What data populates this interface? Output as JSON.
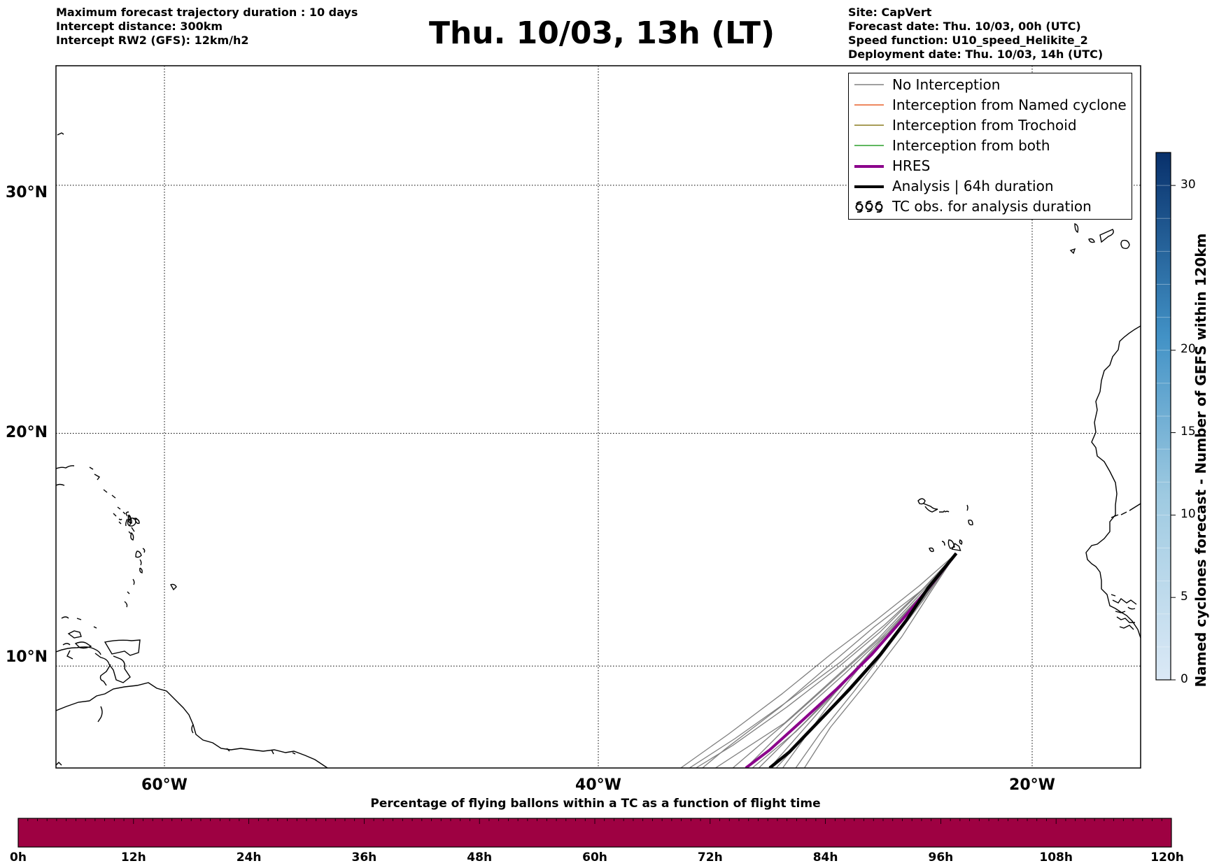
{
  "header": {
    "left_lines": [
      "Maximum forecast trajectory duration : 10 days",
      "Intercept distance: 300km",
      "Intercept RW2 (GFS):  12km/h2"
    ],
    "title": "Thu. 10/03, 13h (LT)",
    "right_lines": [
      "Site: CapVert",
      "Forecast date: Thu. 10/03, 00h (UTC)",
      "Speed function: U10_speed_Helikite_2",
      "Deployment date: Thu. 10/03, 14h (UTC)"
    ]
  },
  "map": {
    "lat_range": [
      5.5,
      34.5
    ],
    "lon_range": [
      -65,
      -15
    ],
    "lat_labels": [
      "30°N",
      "20°N",
      "10°N"
    ],
    "lat_values": [
      30,
      20,
      10
    ],
    "lon_labels": [
      "60°W",
      "40°W",
      "20°W"
    ],
    "lon_values": [
      -60,
      -40,
      -20
    ],
    "grid": "dotted",
    "coastline_color": "#000000",
    "site_marker": {
      "lat": 14.9,
      "lon": -23.5
    }
  },
  "legend": {
    "placement": "top-right",
    "items": [
      {
        "label": "No Interception",
        "color": "#808080",
        "style": "thin-line"
      },
      {
        "label": "Interception from Named cyclone",
        "color": "#e8602c",
        "style": "thin-line"
      },
      {
        "label": "Interception from Trochoid",
        "color": "#8b7d20",
        "style": "thin-line"
      },
      {
        "label": "Interception from both",
        "color": "#2ca02c",
        "style": "thin-line"
      },
      {
        "label": "HRES",
        "color": "#8b008b",
        "style": "thick-line"
      },
      {
        "label": "Analysis | 64h duration",
        "color": "#000000",
        "style": "thick-line"
      },
      {
        "label": "TC obs. for analysis duration",
        "color": "#000000",
        "style": "cyclone-symbols"
      }
    ]
  },
  "trajectories": {
    "ensemble": [
      [
        [
          14.9,
          -23.5
        ],
        [
          13.5,
          -24.6
        ],
        [
          11.8,
          -26.2
        ],
        [
          10.0,
          -27.9
        ],
        [
          8.0,
          -29.6
        ],
        [
          5.5,
          -31.5
        ]
      ],
      [
        [
          14.9,
          -23.5
        ],
        [
          13.4,
          -24.8
        ],
        [
          11.6,
          -26.4
        ],
        [
          9.8,
          -28.2
        ],
        [
          7.8,
          -30.0
        ],
        [
          5.5,
          -32.1
        ]
      ],
      [
        [
          14.9,
          -23.5
        ],
        [
          13.2,
          -25.0
        ],
        [
          11.4,
          -26.7
        ],
        [
          9.5,
          -28.5
        ],
        [
          7.6,
          -30.4
        ],
        [
          5.5,
          -32.6
        ]
      ],
      [
        [
          14.9,
          -23.5
        ],
        [
          13.3,
          -24.9
        ],
        [
          11.5,
          -26.6
        ],
        [
          9.7,
          -28.6
        ],
        [
          7.9,
          -30.7
        ],
        [
          5.5,
          -33.2
        ]
      ],
      [
        [
          14.9,
          -23.5
        ],
        [
          13.1,
          -25.1
        ],
        [
          11.3,
          -26.9
        ],
        [
          9.6,
          -28.9
        ],
        [
          7.8,
          -31.0
        ],
        [
          5.5,
          -33.8
        ]
      ],
      [
        [
          14.9,
          -23.5
        ],
        [
          13.0,
          -25.3
        ],
        [
          11.2,
          -27.1
        ],
        [
          9.4,
          -29.2
        ],
        [
          7.5,
          -31.4
        ],
        [
          5.5,
          -34.6
        ]
      ],
      [
        [
          14.9,
          -23.5
        ],
        [
          13.2,
          -25.2
        ],
        [
          11.5,
          -27.0
        ],
        [
          9.9,
          -29.0
        ],
        [
          8.2,
          -31.3
        ],
        [
          6.5,
          -33.8
        ],
        [
          5.5,
          -35.5
        ]
      ],
      [
        [
          14.9,
          -23.5
        ],
        [
          13.4,
          -25.0
        ],
        [
          11.8,
          -26.8
        ],
        [
          10.2,
          -28.8
        ],
        [
          8.5,
          -31.2
        ],
        [
          6.8,
          -33.7
        ],
        [
          5.5,
          -35.8
        ]
      ],
      [
        [
          14.9,
          -23.5
        ],
        [
          13.1,
          -24.9
        ],
        [
          11.1,
          -26.5
        ],
        [
          9.2,
          -28.3
        ],
        [
          7.2,
          -30.2
        ],
        [
          5.5,
          -31.8
        ]
      ],
      [
        [
          14.9,
          -23.5
        ],
        [
          12.9,
          -25.0
        ],
        [
          10.9,
          -26.6
        ],
        [
          8.9,
          -28.2
        ],
        [
          7.0,
          -29.8
        ],
        [
          5.5,
          -30.9
        ]
      ],
      [
        [
          14.9,
          -23.5
        ],
        [
          13.3,
          -25.1
        ],
        [
          11.7,
          -27.3
        ],
        [
          10.0,
          -29.4
        ],
        [
          8.2,
          -31.6
        ],
        [
          6.3,
          -34.2
        ],
        [
          5.5,
          -35.2
        ]
      ],
      [
        [
          14.9,
          -23.5
        ],
        [
          13.0,
          -25.2
        ],
        [
          11.0,
          -27.0
        ],
        [
          9.1,
          -28.8
        ],
        [
          7.1,
          -30.9
        ],
        [
          5.5,
          -32.9
        ]
      ],
      [
        [
          14.9,
          -23.5
        ],
        [
          13.2,
          -24.7
        ],
        [
          11.3,
          -26.0
        ],
        [
          9.3,
          -27.6
        ],
        [
          7.3,
          -29.3
        ],
        [
          5.5,
          -30.5
        ]
      ],
      [
        [
          14.9,
          -23.5
        ],
        [
          13.5,
          -25.2
        ],
        [
          12.0,
          -27.2
        ],
        [
          10.5,
          -29.3
        ],
        [
          8.8,
          -31.5
        ],
        [
          7.0,
          -34.0
        ],
        [
          5.5,
          -36.2
        ]
      ]
    ],
    "hres": [
      [
        14.9,
        -23.5
      ],
      [
        13.6,
        -24.6
      ],
      [
        12.8,
        -25.3
      ],
      [
        11.9,
        -26.1
      ],
      [
        10.5,
        -27.4
      ],
      [
        9.0,
        -29.0
      ],
      [
        7.6,
        -30.6
      ],
      [
        6.3,
        -32.1
      ],
      [
        5.5,
        -33.2
      ]
    ],
    "analysis": [
      [
        14.9,
        -23.5
      ],
      [
        13.4,
        -24.8
      ],
      [
        12.0,
        -25.8
      ],
      [
        10.5,
        -27.0
      ],
      [
        9.0,
        -28.4
      ],
      [
        7.5,
        -29.9
      ],
      [
        6.2,
        -31.2
      ],
      [
        5.5,
        -32.1
      ]
    ]
  },
  "colorbar": {
    "label": "Named cyclones forecast - Number of GEFS within 120km",
    "min": 0,
    "max": 32,
    "ticks": [
      0,
      5,
      10,
      15,
      20,
      30
    ],
    "color_low": "#dbe9f6",
    "color_high": "#08306b"
  },
  "flight_bar": {
    "title": "Percentage of flying ballons within a TC as a function of flight time",
    "ticks": [
      "0h",
      "12h",
      "24h",
      "36h",
      "48h",
      "60h",
      "72h",
      "84h",
      "96h",
      "108h",
      "120h"
    ],
    "fill_color": "#9e0142",
    "fill_fraction": 1.0
  }
}
